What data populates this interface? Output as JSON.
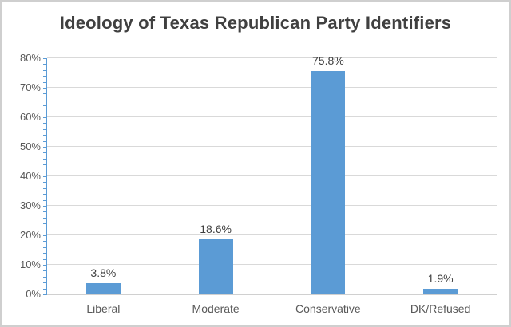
{
  "chart_data": {
    "type": "bar",
    "title": "Ideology of Texas Republican Party Identifiers",
    "categories": [
      "Liberal",
      "Moderate",
      "Conservative",
      "DK/Refused"
    ],
    "values": [
      3.8,
      18.6,
      75.8,
      1.9
    ],
    "value_labels": [
      "3.8%",
      "18.6%",
      "75.8%",
      "1.9%"
    ],
    "xlabel": "",
    "ylabel": "",
    "ylim": [
      0,
      80
    ],
    "ytick_step": 10,
    "ytick_labels": [
      "0%",
      "10%",
      "20%",
      "30%",
      "40%",
      "50%",
      "60%",
      "70%",
      "80%"
    ],
    "minor_tick_step": 2,
    "grid": true,
    "legend": "none",
    "colors": {
      "bar": "#5b9bd5",
      "y_axis": "#5b9bd5",
      "gridline": "#d9d9d9",
      "x_axis": "#d0d0d0",
      "tick_text": "#595959",
      "category_text": "#595959",
      "value_label_text": "#404040",
      "title_text": "#404040",
      "frame_border": "#cfcfcf",
      "background": "#ffffff"
    }
  }
}
